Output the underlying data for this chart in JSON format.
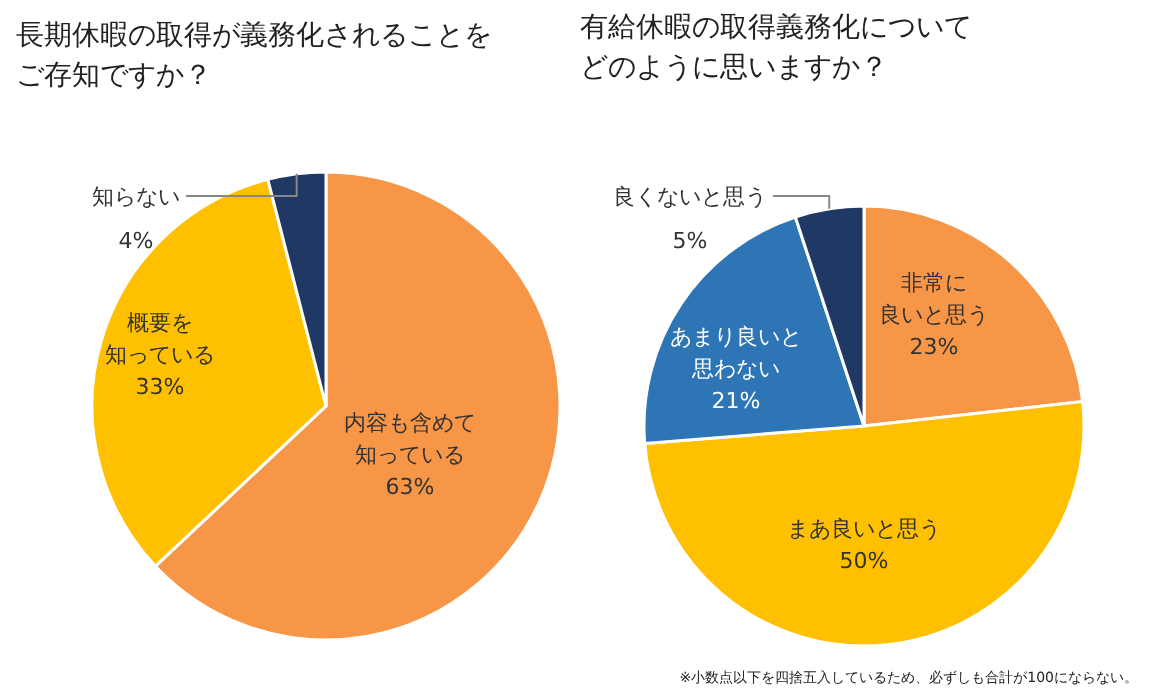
{
  "chart_data": [
    {
      "type": "pie",
      "title": "長期休暇の取得が義務化されることをご存知ですか？",
      "categories": [
        "内容も含めて知っている",
        "概要を知っている",
        "知らない"
      ],
      "values": [
        63,
        33,
        4
      ],
      "value_labels": [
        "63%",
        "33%",
        "4%"
      ],
      "colors": [
        "#f79646",
        "#ffc000",
        "#1f3864"
      ]
    },
    {
      "type": "pie",
      "title": "有給休暇の取得義務化についてどのように思いますか？",
      "categories": [
        "非常に良いと思う",
        "まあ良いと思う",
        "あまり良いと思わない",
        "良くないと思う"
      ],
      "values": [
        23,
        50,
        21,
        5
      ],
      "value_labels": [
        "23%",
        "50%",
        "21%",
        "5%"
      ],
      "colors": [
        "#f79646",
        "#ffc000",
        "#2e75b6",
        "#1f3864"
      ],
      "annotations": [
        "※小数点以下を四捨五入しているため、必ずしも合計が100にならない。"
      ]
    }
  ]
}
